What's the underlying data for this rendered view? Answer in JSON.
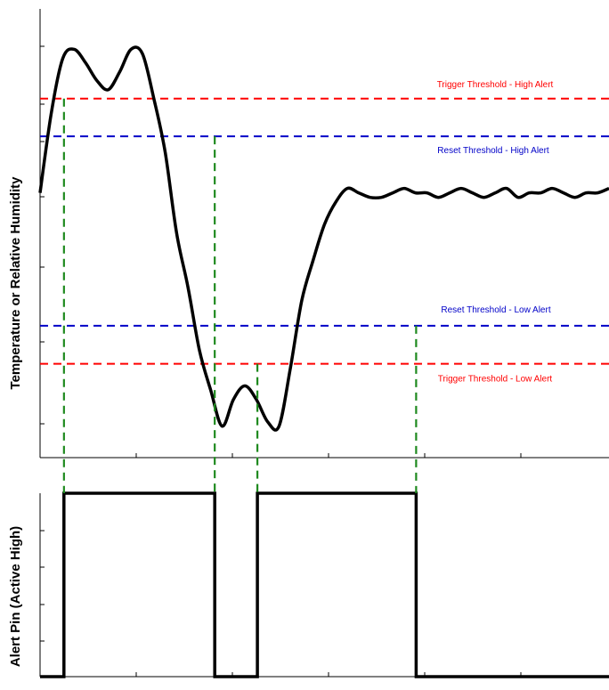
{
  "chart_data": [
    {
      "type": "line",
      "ylabel": "Temperature or Relative Humidity",
      "xlabel": "",
      "title": "",
      "xlim": [
        0,
        100
      ],
      "ylim": [
        0,
        100
      ],
      "grid": false,
      "series": [
        {
          "color": "#000000",
          "x": [
            0,
            2,
            4,
            6,
            8,
            10,
            12,
            14,
            16,
            18,
            20,
            22,
            24,
            26,
            28,
            30,
            32,
            34,
            36,
            38,
            40,
            42,
            44,
            46,
            48,
            50,
            52,
            54,
            56,
            58,
            60,
            62,
            64,
            66,
            68,
            70,
            72,
            74,
            76,
            78,
            80,
            82,
            84,
            86,
            88,
            90,
            92,
            94,
            96,
            98,
            100
          ],
          "y": [
            59,
            77,
            89,
            91,
            88,
            84,
            82,
            86,
            91,
            90,
            80,
            68,
            50,
            38,
            24,
            15,
            7,
            13,
            16,
            13,
            8,
            7,
            20,
            35,
            44,
            52,
            57,
            60,
            59,
            58,
            58,
            59,
            60,
            59,
            59,
            58,
            59,
            60,
            59,
            58,
            59,
            60,
            58,
            59,
            59,
            60,
            59,
            58,
            59,
            59,
            60
          ]
        }
      ],
      "thresholds": [
        {
          "label": "Trigger Threshold - High Alert",
          "y": 80,
          "color": "#ff0000"
        },
        {
          "label": "Reset Threshold - High Alert",
          "y": 71.6,
          "color": "#0000c8"
        },
        {
          "label": "Reset Threshold - Low Alert",
          "y": 29.4,
          "color": "#0000c8"
        },
        {
          "label": "Trigger Threshold - Low Alert",
          "y": 20.9,
          "color": "#ff0000"
        }
      ],
      "crossings_x": [
        4.2,
        30.7,
        38.2,
        66.1
      ]
    },
    {
      "type": "line",
      "ylabel": "Alert Pin (Active High)",
      "xlabel": "",
      "title": "",
      "xlim": [
        0,
        100
      ],
      "ylim": [
        0,
        1
      ],
      "grid": false,
      "series": [
        {
          "color": "#000000",
          "x": [
            0,
            4.2,
            4.2,
            30.7,
            30.7,
            38.2,
            38.2,
            66.1,
            66.1,
            100
          ],
          "y": [
            0,
            0,
            1,
            1,
            0,
            0,
            1,
            1,
            0,
            0
          ]
        }
      ]
    }
  ]
}
